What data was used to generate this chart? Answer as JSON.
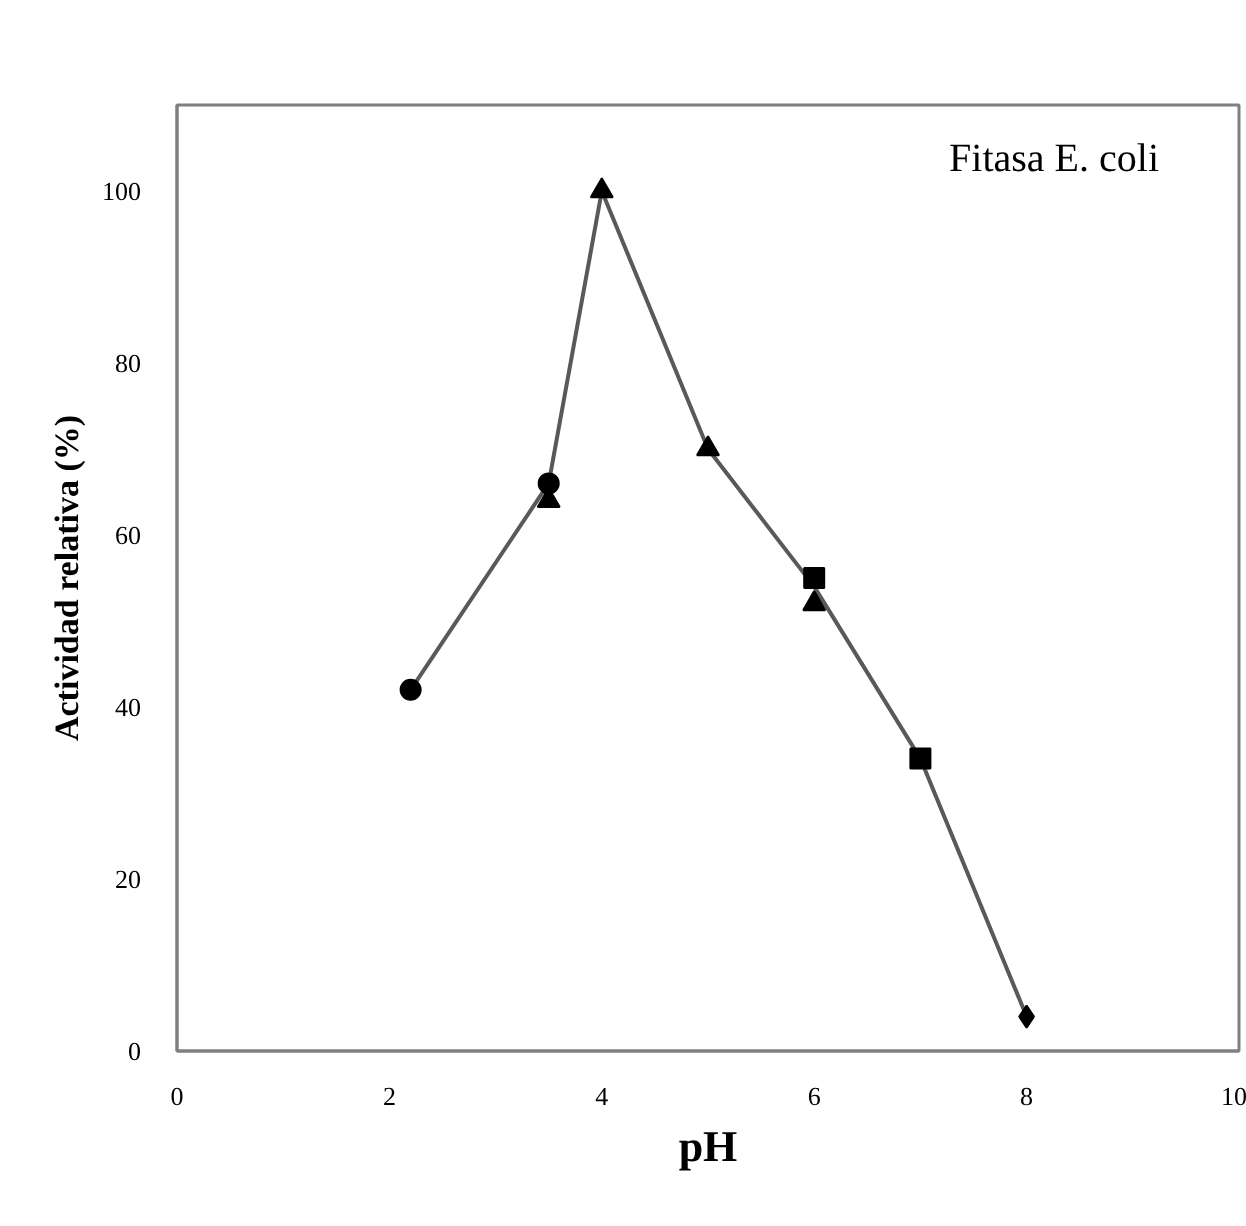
{
  "chart_data": {
    "type": "scatter",
    "xlabel": "pH",
    "ylabel": "Actividad relativa (%)",
    "annotations": [
      "Fitasa E. coli"
    ],
    "xlim": [
      0,
      10
    ],
    "xticks": [
      0,
      2,
      4,
      6,
      8,
      10
    ],
    "ylim": [
      0,
      110
    ],
    "yticks": [
      0,
      20,
      40,
      60,
      80,
      100
    ],
    "grid": false,
    "series": [
      {
        "type": "line",
        "color": "#595959",
        "marker": "none",
        "x": [
          2.2,
          3.5,
          4,
          5,
          6,
          7,
          8
        ],
        "values": [
          42,
          66,
          100,
          70,
          54,
          34,
          4
        ]
      },
      {
        "color": "#000000",
        "marker": "circle",
        "x": [
          2.2,
          3.5
        ],
        "values": [
          42,
          66
        ]
      },
      {
        "color": "#000000",
        "marker": "triangle",
        "x": [
          3.5,
          4,
          5,
          6
        ],
        "values": [
          64,
          100,
          70,
          52
        ]
      },
      {
        "color": "#000000",
        "marker": "square",
        "x": [
          6,
          7
        ],
        "values": [
          55,
          34
        ]
      },
      {
        "color": "#000000",
        "marker": "diamond",
        "x": [
          8
        ],
        "values": [
          4
        ]
      }
    ]
  }
}
